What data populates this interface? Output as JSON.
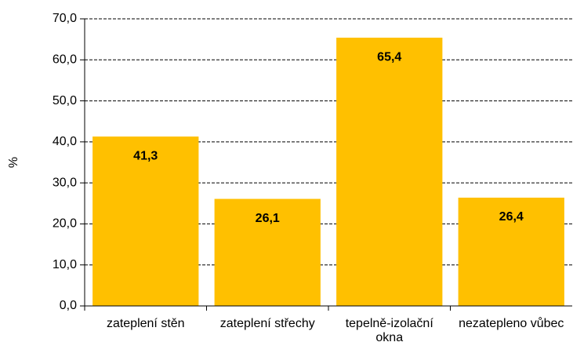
{
  "chart_data": {
    "type": "bar",
    "y_label": "%",
    "categories": [
      "zateplení stěn",
      "zateplení střechy",
      "tepelně-izolační okna",
      "nezatepleno vůbec"
    ],
    "values": [
      41.3,
      26.1,
      65.4,
      26.4
    ],
    "value_labels": [
      "41,3",
      "26,1",
      "65,4",
      "26,4"
    ],
    "color": "#ffc000",
    "ylim": [
      0,
      70
    ],
    "yticks": [
      {
        "value": 0,
        "label": "0,0"
      },
      {
        "value": 10,
        "label": "10,0"
      },
      {
        "value": 20,
        "label": "20,0"
      },
      {
        "value": 30,
        "label": "30,0"
      },
      {
        "value": 40,
        "label": "40,0"
      },
      {
        "value": 50,
        "label": "50,0"
      },
      {
        "value": 60,
        "label": "60,0"
      },
      {
        "value": 70,
        "label": "70,0"
      }
    ],
    "grid": true
  }
}
